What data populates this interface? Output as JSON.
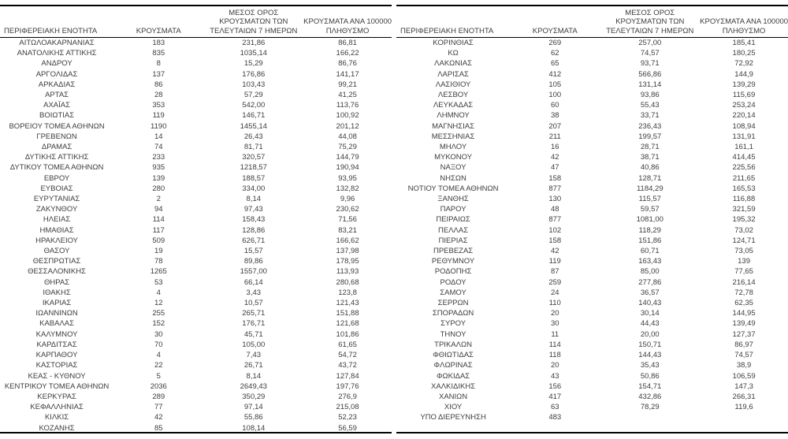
{
  "columns": {
    "region": "ΠΕΡΙΦΕΡΕΙΑΚΗ ΕΝΟΤΗΤΑ",
    "cases": "ΚΡΟΥΣΜΑΤΑ",
    "avg7_lines": [
      "ΜΕΣΟΣ ΟΡΟΣ",
      "ΚΡΟΥΣΜΑΤΩΝ ΤΩΝ",
      "ΤΕΛΕΥΤΑΙΩΝ 7 ΗΜΕΡΩΝ"
    ],
    "per100k_lines": [
      "ΚΡΟΥΣΜΑΤΑ ΑΝΑ 100000",
      "ΠΛΗΘΥΣΜΟ"
    ]
  },
  "tables": [
    {
      "name": "left",
      "rows": [
        [
          "ΑΙΤΩΛΟΑΚΑΡΝΑΝΙΑΣ",
          "183",
          "231,86",
          "86,81"
        ],
        [
          "ΑΝΑΤΟΛΙΚΗΣ ΑΤΤΙΚΗΣ",
          "835",
          "1035,14",
          "166,22"
        ],
        [
          "ΑΝΔΡΟΥ",
          "8",
          "15,29",
          "86,76"
        ],
        [
          "ΑΡΓΟΛΙΔΑΣ",
          "137",
          "176,86",
          "141,17"
        ],
        [
          "ΑΡΚΑΔΙΑΣ",
          "86",
          "103,43",
          "99,21"
        ],
        [
          "ΑΡΤΑΣ",
          "28",
          "57,29",
          "41,25"
        ],
        [
          "ΑΧΑΪΑΣ",
          "353",
          "542,00",
          "113,76"
        ],
        [
          "ΒΟΙΩΤΙΑΣ",
          "119",
          "146,71",
          "100,92"
        ],
        [
          "ΒΟΡΕΙΟΥ ΤΟΜΕΑ ΑΘΗΝΩΝ",
          "1190",
          "1455,14",
          "201,12"
        ],
        [
          "ΓΡΕΒΕΝΩΝ",
          "14",
          "26,43",
          "44,08"
        ],
        [
          "ΔΡΑΜΑΣ",
          "74",
          "81,71",
          "75,29"
        ],
        [
          "ΔΥΤΙΚΗΣ ΑΤΤΙΚΗΣ",
          "233",
          "320,57",
          "144,79"
        ],
        [
          "ΔΥΤΙΚΟΥ ΤΟΜΕΑ ΑΘΗΝΩΝ",
          "935",
          "1218,57",
          "190,94"
        ],
        [
          "ΕΒΡΟΥ",
          "139",
          "188,57",
          "93,95"
        ],
        [
          "ΕΥΒΟΙΑΣ",
          "280",
          "334,00",
          "132,82"
        ],
        [
          "ΕΥΡΥΤΑΝΙΑΣ",
          "2",
          "8,14",
          "9,96"
        ],
        [
          "ΖΑΚΥΝΘΟΥ",
          "94",
          "97,43",
          "230,62"
        ],
        [
          "ΗΛΕΙΑΣ",
          "114",
          "158,43",
          "71,56"
        ],
        [
          "ΗΜΑΘΙΑΣ",
          "117",
          "128,86",
          "83,21"
        ],
        [
          "ΗΡΑΚΛΕΙΟΥ",
          "509",
          "626,71",
          "166,62"
        ],
        [
          "ΘΑΣΟΥ",
          "19",
          "15,57",
          "137,98"
        ],
        [
          "ΘΕΣΠΡΩΤΙΑΣ",
          "78",
          "89,86",
          "178,95"
        ],
        [
          "ΘΕΣΣΑΛΟΝΙΚΗΣ",
          "1265",
          "1557,00",
          "113,93"
        ],
        [
          "ΘΗΡΑΣ",
          "53",
          "66,14",
          "280,68"
        ],
        [
          "ΙΘΑΚΗΣ",
          "4",
          "3,43",
          "123,8"
        ],
        [
          "ΙΚΑΡΙΑΣ",
          "12",
          "10,57",
          "121,43"
        ],
        [
          "ΙΩΑΝΝΙΝΩΝ",
          "255",
          "265,71",
          "151,88"
        ],
        [
          "ΚΑΒΑΛΑΣ",
          "152",
          "176,71",
          "121,68"
        ],
        [
          "ΚΑΛΥΜΝΟΥ",
          "30",
          "45,71",
          "101,86"
        ],
        [
          "ΚΑΡΔΙΤΣΑΣ",
          "70",
          "105,00",
          "61,65"
        ],
        [
          "ΚΑΡΠΑΘΟΥ",
          "4",
          "7,43",
          "54,72"
        ],
        [
          "ΚΑΣΤΟΡΙΑΣ",
          "22",
          "26,71",
          "43,72"
        ],
        [
          "ΚΕΑΣ - ΚΥΘΝΟΥ",
          "5",
          "8,14",
          "127,84"
        ],
        [
          "ΚΕΝΤΡΙΚΟΥ ΤΟΜΕΑ ΑΘΗΝΩΝ",
          "2036",
          "2649,43",
          "197,76"
        ],
        [
          "ΚΕΡΚΥΡΑΣ",
          "289",
          "350,29",
          "276,9"
        ],
        [
          "ΚΕΦΑΛΛΗΝΙΑΣ",
          "77",
          "97,14",
          "215,08"
        ],
        [
          "ΚΙΛΚΙΣ",
          "42",
          "55,86",
          "52,23"
        ],
        [
          "ΚΟΖΑΝΗΣ",
          "85",
          "108,14",
          "56,59"
        ]
      ]
    },
    {
      "name": "right",
      "rows": [
        [
          "ΚΟΡΙΝΘΙΑΣ",
          "269",
          "257,00",
          "185,41"
        ],
        [
          "ΚΩ",
          "62",
          "74,57",
          "180,25"
        ],
        [
          "ΛΑΚΩΝΙΑΣ",
          "65",
          "93,71",
          "72,92"
        ],
        [
          "ΛΑΡΙΣΑΣ",
          "412",
          "566,86",
          "144,9"
        ],
        [
          "ΛΑΣΙΘΙΟΥ",
          "105",
          "131,14",
          "139,29"
        ],
        [
          "ΛΕΣΒΟΥ",
          "100",
          "93,86",
          "115,69"
        ],
        [
          "ΛΕΥΚΑΔΑΣ",
          "60",
          "55,43",
          "253,24"
        ],
        [
          "ΛΗΜΝΟΥ",
          "38",
          "33,71",
          "220,14"
        ],
        [
          "ΜΑΓΝΗΣΙΑΣ",
          "207",
          "236,43",
          "108,94"
        ],
        [
          "ΜΕΣΣΗΝΙΑΣ",
          "211",
          "199,57",
          "131,91"
        ],
        [
          "ΜΗΛΟΥ",
          "16",
          "28,71",
          "161,1"
        ],
        [
          "ΜΥΚΟΝΟΥ",
          "42",
          "38,71",
          "414,45"
        ],
        [
          "ΝΑΞΟΥ",
          "47",
          "40,86",
          "225,56"
        ],
        [
          "ΝΗΣΩΝ",
          "158",
          "128,71",
          "211,65"
        ],
        [
          "ΝΟΤΙΟΥ ΤΟΜΕΑ ΑΘΗΝΩΝ",
          "877",
          "1184,29",
          "165,53"
        ],
        [
          "ΞΑΝΘΗΣ",
          "130",
          "115,57",
          "116,88"
        ],
        [
          "ΠΑΡΟΥ",
          "48",
          "59,57",
          "321,59"
        ],
        [
          "ΠΕΙΡΑΙΩΣ",
          "877",
          "1081,00",
          "195,32"
        ],
        [
          "ΠΕΛΛΑΣ",
          "102",
          "118,29",
          "73,02"
        ],
        [
          "ΠΙΕΡΙΑΣ",
          "158",
          "151,86",
          "124,71"
        ],
        [
          "ΠΡΕΒΕΖΑΣ",
          "42",
          "60,71",
          "73,05"
        ],
        [
          "ΡΕΘΥΜΝΟΥ",
          "119",
          "163,43",
          "139"
        ],
        [
          "ΡΟΔΟΠΗΣ",
          "87",
          "85,00",
          "77,65"
        ],
        [
          "ΡΟΔΟΥ",
          "259",
          "277,86",
          "216,14"
        ],
        [
          "ΣΑΜΟΥ",
          "24",
          "36,57",
          "72,78"
        ],
        [
          "ΣΕΡΡΩΝ",
          "110",
          "140,43",
          "62,35"
        ],
        [
          "ΣΠΟΡΑΔΩΝ",
          "20",
          "30,14",
          "144,95"
        ],
        [
          "ΣΥΡΟΥ",
          "30",
          "44,43",
          "139,49"
        ],
        [
          "ΤΗΝΟΥ",
          "11",
          "20,00",
          "127,37"
        ],
        [
          "ΤΡΙΚΑΛΩΝ",
          "114",
          "150,71",
          "86,97"
        ],
        [
          "ΦΘΙΩΤΙΔΑΣ",
          "118",
          "144,43",
          "74,57"
        ],
        [
          "ΦΛΩΡΙΝΑΣ",
          "20",
          "35,43",
          "38,9"
        ],
        [
          "ΦΩΚΙΔΑΣ",
          "43",
          "50,86",
          "106,59"
        ],
        [
          "ΧΑΛΚΙΔΙΚΗΣ",
          "156",
          "154,71",
          "147,3"
        ],
        [
          "ΧΑΝΙΩΝ",
          "417",
          "432,86",
          "266,31"
        ],
        [
          "ΧΙΟΥ",
          "63",
          "78,29",
          "119,6"
        ],
        [
          "ΥΠΟ ΔΙΕΡΕΥΝΗΣΗ",
          "483",
          "",
          ""
        ]
      ]
    }
  ]
}
